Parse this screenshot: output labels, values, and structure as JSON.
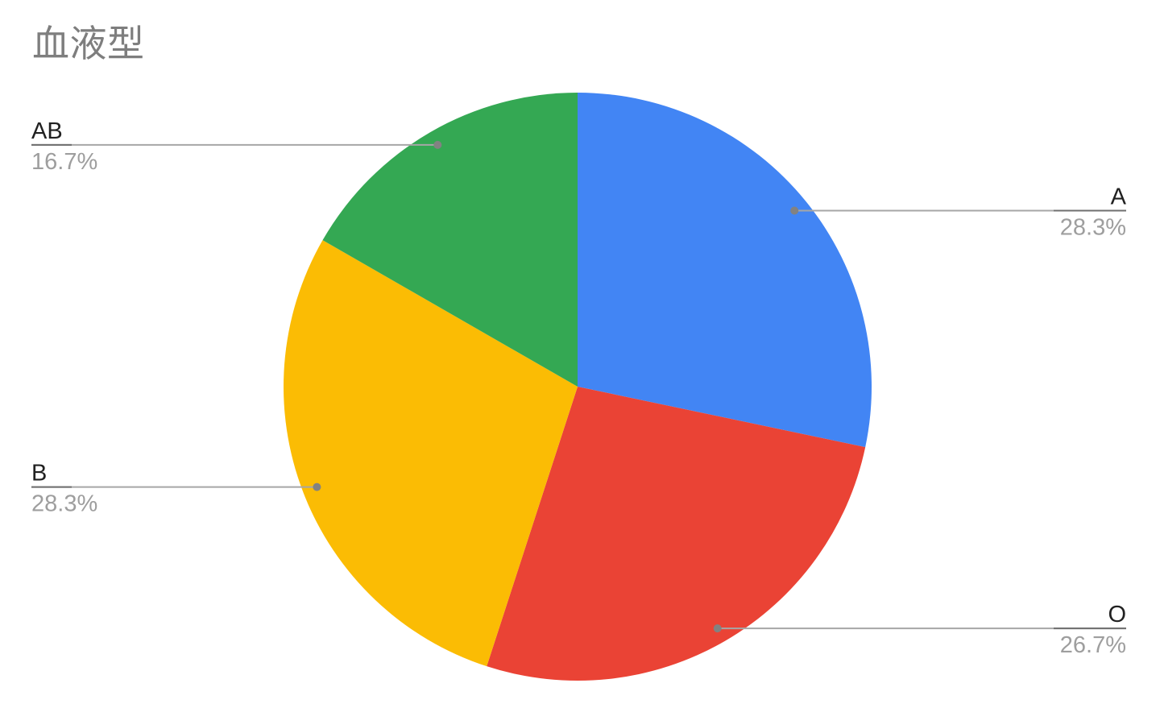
{
  "chart_data": {
    "type": "pie",
    "title": "血液型",
    "categories": [
      "A",
      "O",
      "B",
      "AB"
    ],
    "values": [
      28.3,
      26.7,
      28.3,
      16.7
    ],
    "slices": [
      {
        "label": "A",
        "percent": 28.3,
        "display": "28.3%",
        "color": "#4285F4"
      },
      {
        "label": "O",
        "percent": 26.7,
        "display": "26.7%",
        "color": "#EA4335"
      },
      {
        "label": "B",
        "percent": 28.3,
        "display": "28.3%",
        "color": "#FBBC04"
      },
      {
        "label": "AB",
        "percent": 16.7,
        "display": "16.7%",
        "color": "#34A853"
      }
    ],
    "start_angle_deg": 0,
    "direction": "clockwise",
    "labels_style": "outside-callouts",
    "legend": "none",
    "background_color": "#FFFFFF",
    "title_color": "#7E7E7E",
    "label_color": "#212121",
    "percent_color": "#9E9E9E",
    "callout_line_color": "#A6A6A6",
    "callout_line_dark_color": "#6F6F6F",
    "callout_dot_color": "#828282"
  }
}
